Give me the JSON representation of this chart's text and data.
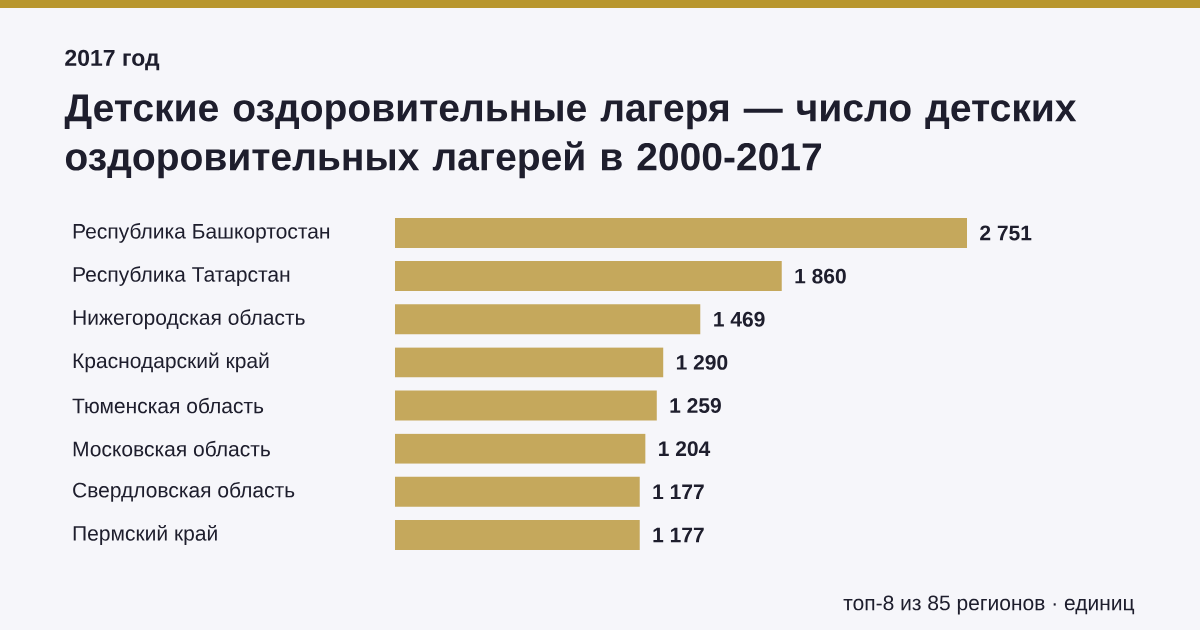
{
  "chart_data": {
    "type": "bar",
    "orientation": "horizontal",
    "title": "Детские оздоровительные лагеря — число детских оздоровительных лагерей в 2000-2017",
    "subtitle": "2017 год",
    "categories": [
      "Республика Башкортостан",
      "Республика Татарстан",
      "Нижегородская область",
      "Краснодарский край",
      "Тюменская область",
      "Московская область",
      "Свердловская область",
      "Пермский край"
    ],
    "values": [
      2751,
      1860,
      1469,
      1290,
      1259,
      1204,
      1177,
      1177
    ],
    "value_labels": [
      "2 751",
      "1 860",
      "1 469",
      "1 290",
      "1 259",
      "1 204",
      "1 177",
      "1 177"
    ],
    "color": "#c5a85c",
    "annotations": [
      "топ-8 из 85 регионов · единиц"
    ]
  }
}
